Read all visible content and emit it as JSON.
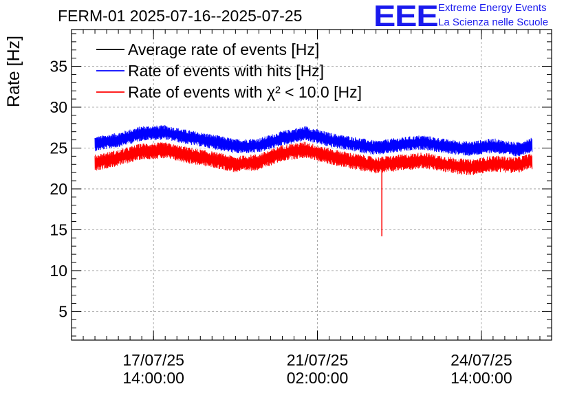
{
  "header": {
    "title": "FERM-01 2025-07-16--2025-07-25",
    "logo_text": "EEE",
    "logo_line1": "Extreme Energy Events",
    "logo_line2": "La Scienza nelle Scuole",
    "brand_color": "#1a1aee"
  },
  "chart_data": {
    "type": "line",
    "title": "FERM-01 2025-07-16--2025-07-25",
    "ylabel": "Rate [Hz]",
    "xlabel": "",
    "ylim": [
      1.5,
      39.5
    ],
    "y_ticks": [
      5,
      10,
      15,
      20,
      25,
      30,
      35
    ],
    "x_range": [
      "2025-07-15 20:00",
      "2025-07-26 02:00"
    ],
    "x_ticks": [
      {
        "x": "2025-07-17 14:00",
        "label_date": "17/07/25",
        "label_time": "14:00:00"
      },
      {
        "x": "2025-07-21 02:00",
        "label_date": "21/07/25",
        "label_time": "02:00:00"
      },
      {
        "x": "2025-07-24 14:00",
        "label_date": "24/07/25",
        "label_time": "14:00:00"
      }
    ],
    "grid": true,
    "legend_position": "top-left",
    "series": [
      {
        "name": "Average rate of events [Hz]",
        "color": "#000000",
        "values": []
      },
      {
        "name": "Rate of events with hits [Hz]",
        "color": "#0000ff",
        "band_half_width": 0.9,
        "values": [
          {
            "x": "2025-07-16 08:00",
            "y": 25.5
          },
          {
            "x": "2025-07-16 20:00",
            "y": 26.0
          },
          {
            "x": "2025-07-17 08:00",
            "y": 26.8
          },
          {
            "x": "2025-07-17 20:00",
            "y": 26.9
          },
          {
            "x": "2025-07-18 08:00",
            "y": 26.3
          },
          {
            "x": "2025-07-18 20:00",
            "y": 25.8
          },
          {
            "x": "2025-07-19 08:00",
            "y": 25.2
          },
          {
            "x": "2025-07-19 20:00",
            "y": 25.3
          },
          {
            "x": "2025-07-20 08:00",
            "y": 26.2
          },
          {
            "x": "2025-07-20 20:00",
            "y": 26.8
          },
          {
            "x": "2025-07-21 08:00",
            "y": 26.0
          },
          {
            "x": "2025-07-21 20:00",
            "y": 25.5
          },
          {
            "x": "2025-07-22 08:00",
            "y": 25.0
          },
          {
            "x": "2025-07-22 20:00",
            "y": 25.4
          },
          {
            "x": "2025-07-23 08:00",
            "y": 25.7
          },
          {
            "x": "2025-07-23 20:00",
            "y": 25.2
          },
          {
            "x": "2025-07-24 08:00",
            "y": 24.9
          },
          {
            "x": "2025-07-24 20:00",
            "y": 25.3
          },
          {
            "x": "2025-07-25 08:00",
            "y": 24.8
          },
          {
            "x": "2025-07-25 16:00",
            "y": 25.4
          }
        ]
      },
      {
        "name": "Rate of events with χ² < 10.0 [Hz]",
        "color": "#ff0000",
        "band_half_width": 1.0,
        "values": [
          {
            "x": "2025-07-16 08:00",
            "y": 23.2
          },
          {
            "x": "2025-07-16 20:00",
            "y": 23.8
          },
          {
            "x": "2025-07-17 08:00",
            "y": 24.6
          },
          {
            "x": "2025-07-17 20:00",
            "y": 24.7
          },
          {
            "x": "2025-07-18 08:00",
            "y": 24.1
          },
          {
            "x": "2025-07-18 20:00",
            "y": 23.6
          },
          {
            "x": "2025-07-19 08:00",
            "y": 23.0
          },
          {
            "x": "2025-07-19 20:00",
            "y": 23.3
          },
          {
            "x": "2025-07-20 08:00",
            "y": 24.4
          },
          {
            "x": "2025-07-20 20:00",
            "y": 24.8
          },
          {
            "x": "2025-07-21 08:00",
            "y": 24.0
          },
          {
            "x": "2025-07-21 20:00",
            "y": 23.4
          },
          {
            "x": "2025-07-22 08:00",
            "y": 22.9
          },
          {
            "x": "2025-07-22 20:00",
            "y": 23.2
          },
          {
            "x": "2025-07-23 08:00",
            "y": 23.5
          },
          {
            "x": "2025-07-23 20:00",
            "y": 23.0
          },
          {
            "x": "2025-07-24 08:00",
            "y": 22.6
          },
          {
            "x": "2025-07-24 20:00",
            "y": 23.1
          },
          {
            "x": "2025-07-25 08:00",
            "y": 22.9
          },
          {
            "x": "2025-07-25 16:00",
            "y": 23.4
          }
        ],
        "dips": [
          {
            "x": "2025-07-22 11:00",
            "y": 14.2
          }
        ]
      }
    ]
  }
}
